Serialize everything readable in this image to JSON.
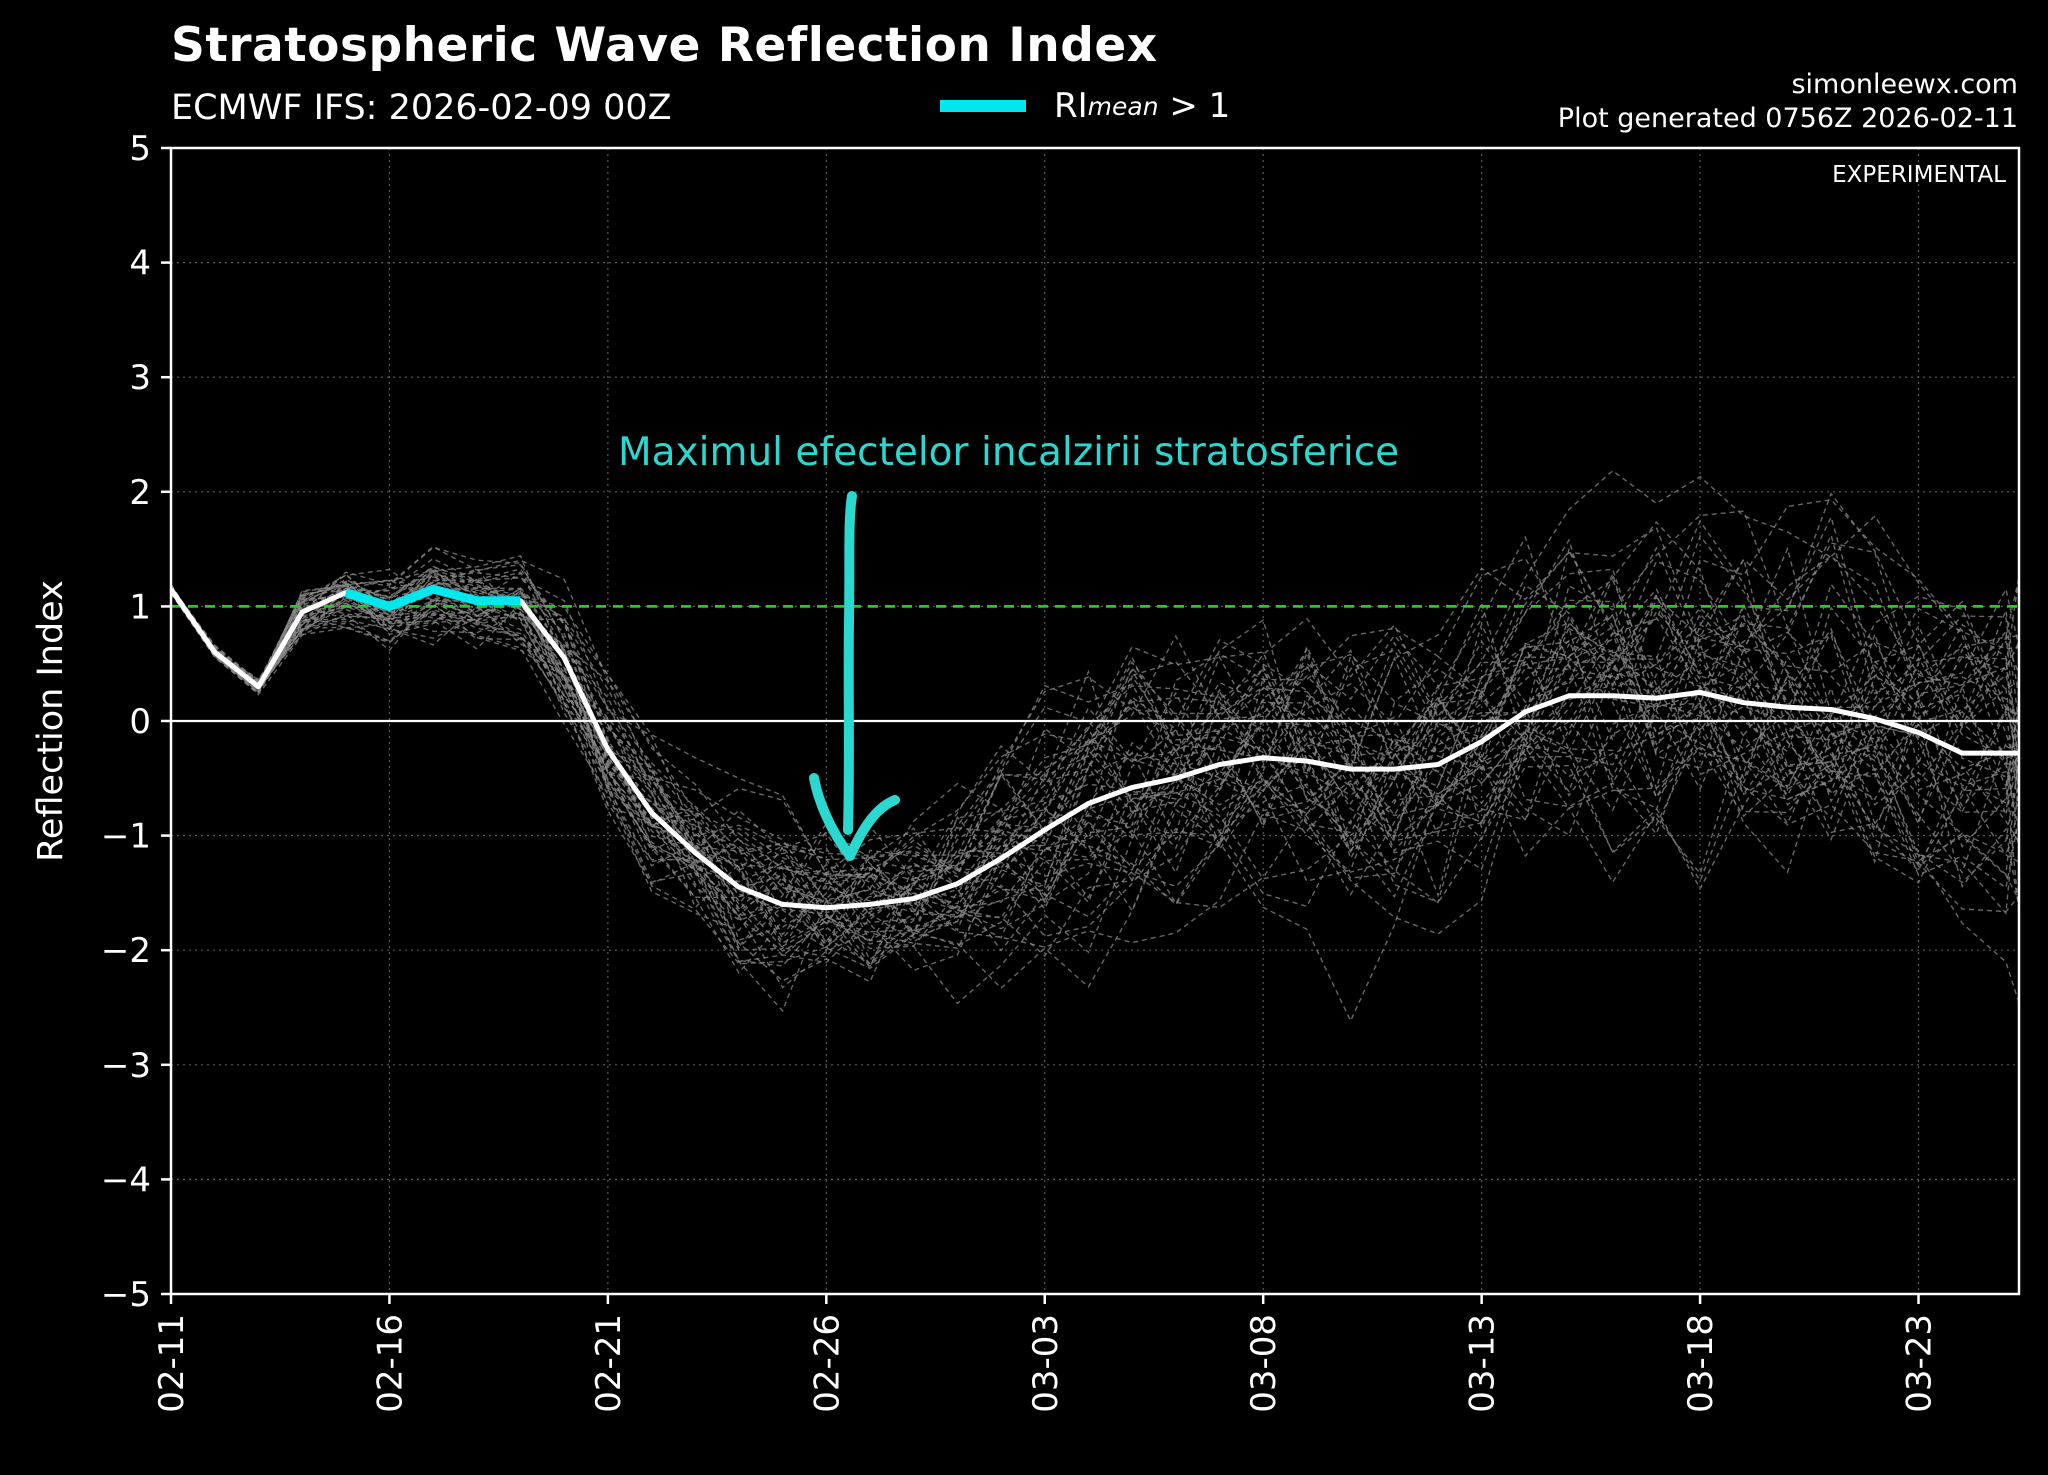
{
  "header": {
    "title": "Stratospheric Wave Reflection Index",
    "subtitle": "ECMWF IFS: 2026-02-09 00Z",
    "credit_site": "simonleewx.com",
    "credit_generated": "Plot generated 0756Z 2026-02-11",
    "legend_label": "RI",
    "legend_sub": "mean",
    "legend_suffix": " > 1"
  },
  "colors": {
    "background": "#000000",
    "mean_line": "#ffffff",
    "highlight": "#00e8ee",
    "threshold": "#22cc22",
    "ensemble": "#8a8a8a",
    "annotation": "#2ad8d0"
  },
  "chart_data": {
    "type": "line",
    "title": "Stratospheric Wave Reflection Index",
    "xlabel": "",
    "ylabel": "Reflection Index",
    "ylim": [
      -5,
      5
    ],
    "yticks": [
      5,
      4,
      3,
      2,
      1,
      0,
      -1,
      -2,
      -3,
      -4,
      -5
    ],
    "ytick_labels": [
      "5",
      "4",
      "3",
      "2",
      "1",
      "0",
      "−1",
      "−2",
      "−3",
      "−4",
      "−5"
    ],
    "xlim_days": [
      0,
      42.3
    ],
    "xticks_days": [
      0,
      5,
      10,
      15,
      20,
      25,
      30,
      35,
      40
    ],
    "xtick_labels": [
      "02-11",
      "02-16",
      "02-21",
      "02-26",
      "03-03",
      "03-08",
      "03-13",
      "03-18",
      "03-23"
    ],
    "grid": true,
    "threshold": 1,
    "zero_line": 0,
    "watermark": "EXPERIMENTAL",
    "series": [
      {
        "name": "RI mean",
        "x": [
          0,
          1,
          2,
          3,
          4,
          5,
          6,
          7,
          8,
          9,
          10,
          11,
          12,
          13,
          14,
          15,
          16,
          17,
          18,
          19,
          20,
          21,
          22,
          23,
          24,
          25,
          26,
          27,
          28,
          29,
          30,
          31,
          32,
          33,
          34,
          35,
          36,
          37,
          38,
          39,
          40,
          41,
          42,
          42.3
        ],
        "values": [
          1.15,
          0.6,
          0.3,
          0.95,
          1.12,
          1.0,
          1.15,
          1.05,
          1.05,
          0.55,
          -0.25,
          -0.8,
          -1.15,
          -1.45,
          -1.6,
          -1.63,
          -1.6,
          -1.55,
          -1.42,
          -1.2,
          -0.95,
          -0.72,
          -0.58,
          -0.5,
          -0.38,
          -0.32,
          -0.35,
          -0.42,
          -0.42,
          -0.38,
          -0.18,
          0.08,
          0.22,
          0.22,
          0.2,
          0.25,
          0.16,
          0.12,
          0.1,
          0.02,
          -0.1,
          -0.28,
          -0.28,
          -0.28
        ]
      },
      {
        "name": "RI mean > 1",
        "x": [
          4,
          5,
          6,
          7,
          8
        ],
        "values": [
          1.12,
          1.0,
          1.15,
          1.05,
          1.05
        ]
      }
    ],
    "ensemble_members": 50,
    "annotation": {
      "text": "Maximul efectelor incalzirii stratosferice",
      "target_day": 15.5,
      "target_value": -1.2
    }
  }
}
